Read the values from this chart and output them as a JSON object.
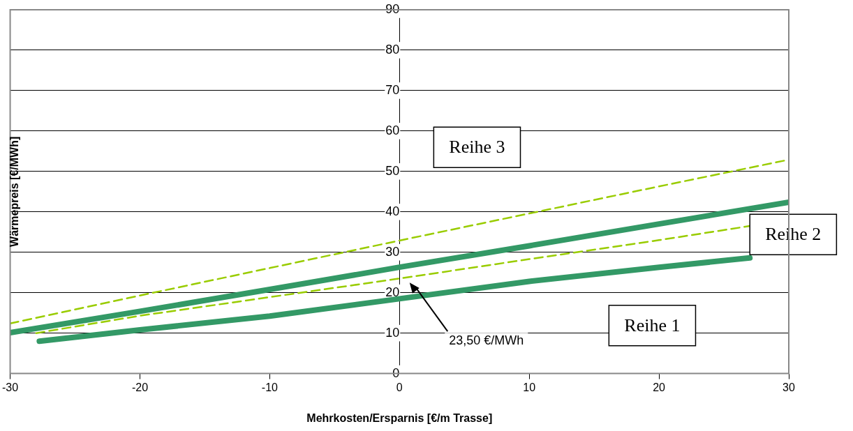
{
  "chart_data": {
    "type": "line",
    "xlabel": "Mehrkosten/Ersparnis [€/m Trasse]",
    "ylabel": "Wärmepreis [€/MWh]",
    "xlim": [
      -30,
      30
    ],
    "xticks": [
      -30,
      -20,
      -10,
      0,
      10,
      20,
      30
    ],
    "ylim": [
      0,
      90
    ],
    "yticks": [
      0,
      10,
      20,
      30,
      40,
      50,
      60,
      70,
      80,
      90
    ],
    "grid": "y",
    "legend": false,
    "marker": "none",
    "series": [
      {
        "color": "#339966",
        "line_style": "solid",
        "x": [
          -27.75,
          -20,
          -10,
          0,
          10,
          20,
          27
        ],
        "values": [
          8,
          10.8,
          14.2,
          18.5,
          22.8,
          26.3,
          28.6
        ]
      },
      {
        "color": "#339966",
        "line_style": "solid",
        "x": [
          -30,
          -20,
          -10,
          0,
          10,
          20,
          30
        ],
        "values": [
          10.1,
          15.4,
          20.8,
          26.3,
          31.6,
          37,
          42.4
        ]
      },
      {
        "color": "#99cc00",
        "line_style": "dashed",
        "x": [
          -28,
          -20,
          -10,
          0,
          10,
          20,
          27
        ],
        "values": [
          10,
          14.3,
          18.9,
          23.5,
          28.3,
          33,
          36.5
        ]
      },
      {
        "color": "#99cc00",
        "line_style": "dashed",
        "x": [
          -30,
          -20,
          -10,
          0,
          10,
          20,
          30
        ],
        "values": [
          12.4,
          19.3,
          26.1,
          32.9,
          39.6,
          46.3,
          52.9
        ]
      }
    ],
    "annotations": [
      "Reihe 3",
      "Reihe 2",
      "Reihe 1",
      "23,50 €/MWh"
    ]
  }
}
